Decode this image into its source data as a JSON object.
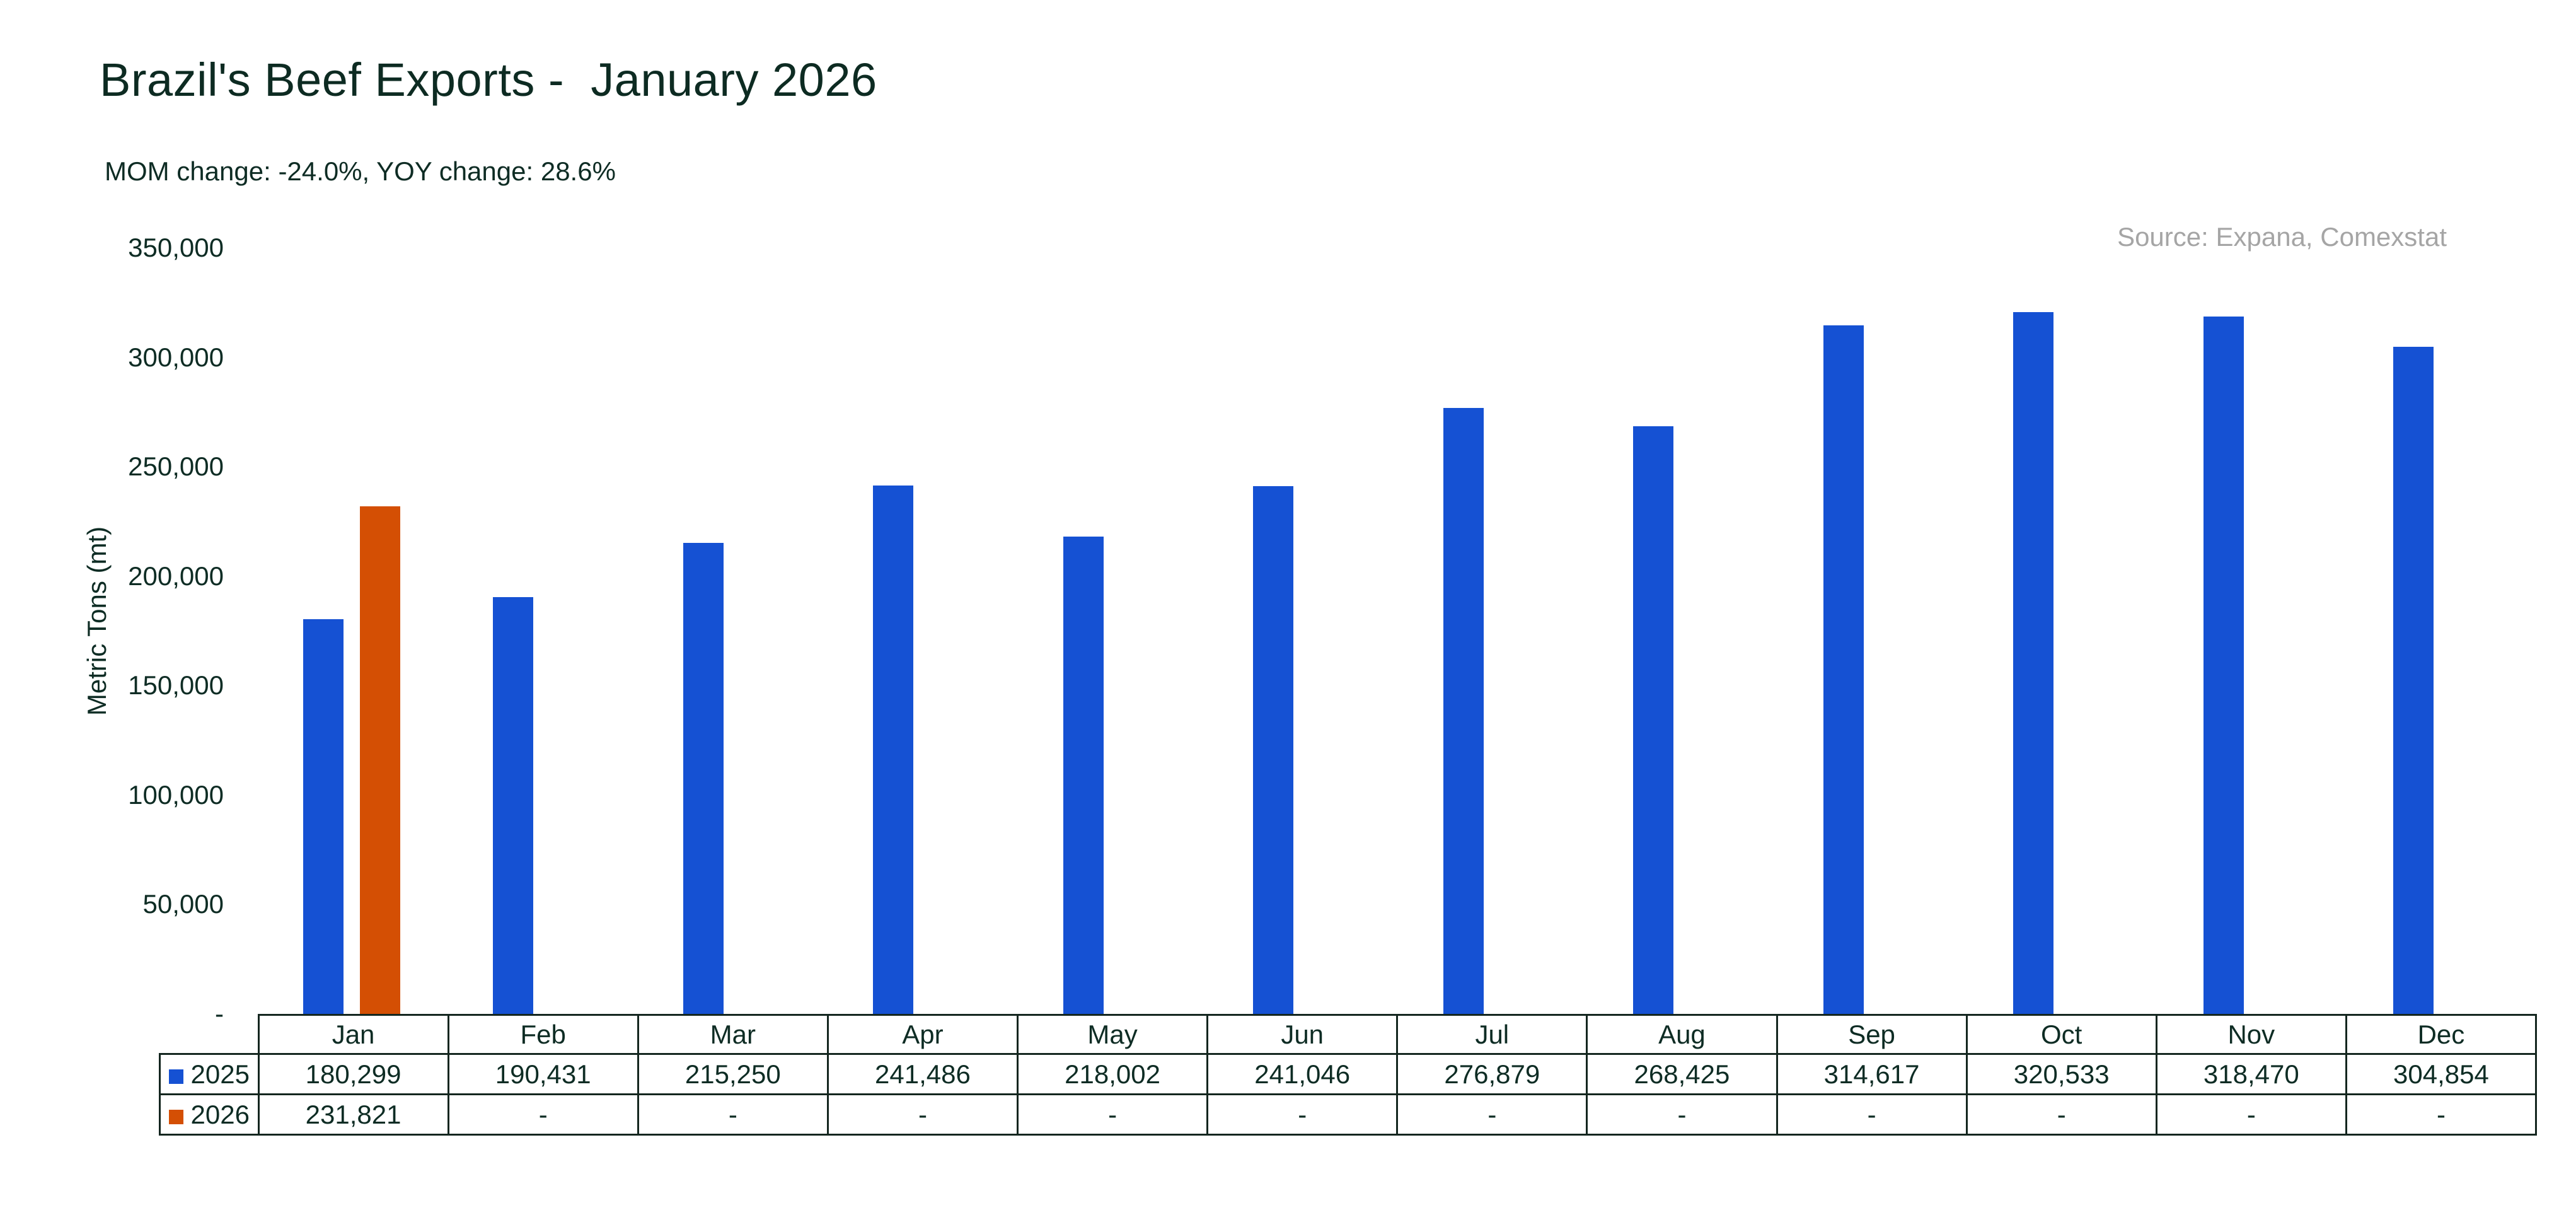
{
  "header": {
    "title": "Brazil's Beef Exports -  January 2026",
    "subtitle": "MOM change: -24.0%, YOY change: 28.6%",
    "source": "Source: Expana, Comexstat"
  },
  "chart_data": {
    "type": "bar",
    "title": "Brazil's Beef Exports - January 2026",
    "subtitle": "MOM change: -24.0%, YOY change: 28.6%",
    "source": "Source: Expana, Comexstat",
    "categories": [
      "Jan",
      "Feb",
      "Mar",
      "Apr",
      "May",
      "Jun",
      "Jul",
      "Aug",
      "Sep",
      "Oct",
      "Nov",
      "Dec"
    ],
    "series": [
      {
        "name": "2025",
        "color": "#1551d3",
        "values": [
          180299,
          190431,
          215250,
          241486,
          218002,
          241046,
          276879,
          268425,
          314617,
          320533,
          318470,
          304854
        ]
      },
      {
        "name": "2026",
        "color": "#d44f04",
        "values": [
          231821,
          null,
          null,
          null,
          null,
          null,
          null,
          null,
          null,
          null,
          null,
          null
        ]
      }
    ],
    "xlabel": "",
    "ylabel": "Metric Tons (mt)",
    "ylim": [
      0,
      350000
    ],
    "ytick_step": 50000,
    "ytick_labels": [
      "-",
      "50,000",
      "100,000",
      "150,000",
      "200,000",
      "250,000",
      "300,000",
      "350,000"
    ],
    "grid": false,
    "legend_position": "data-table-left",
    "null_display": "-",
    "colors": {
      "series_2025": "#1551d3",
      "series_2026": "#d44f04",
      "text_dark": "#0e2c24",
      "source_gray": "#a5a5a5",
      "table_border": "#14261f",
      "background": "#ffffff"
    }
  }
}
